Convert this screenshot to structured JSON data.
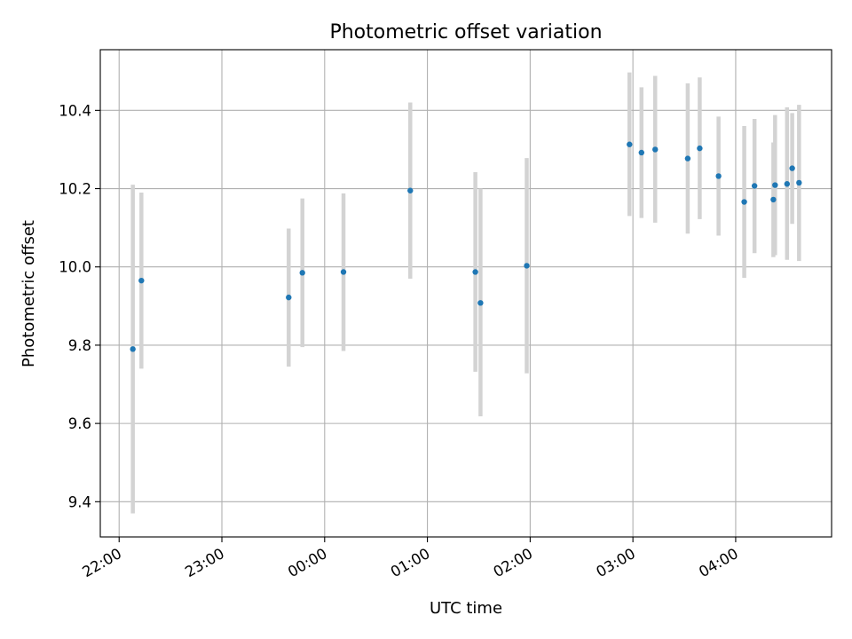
{
  "chart_data": {
    "type": "scatter",
    "title": "Photometric offset variation",
    "xlabel": "UTC time",
    "ylabel": "Photometric offset",
    "x_axis": "time",
    "xlim": [
      "21:49",
      "04:56"
    ],
    "ylim": [
      9.31,
      10.555
    ],
    "xticks": [
      "22:00",
      "23:00",
      "00:00",
      "01:00",
      "02:00",
      "03:00",
      "04:00"
    ],
    "yticks": [
      9.4,
      9.6,
      9.8,
      10.0,
      10.2,
      10.4
    ],
    "ytick_labels": [
      "9.4",
      "9.6",
      "9.8",
      "10.0",
      "10.2",
      "10.4"
    ],
    "grid": true,
    "legend": "none",
    "colors": {
      "point": "#1f77b4",
      "errorbar": "#d3d3d3",
      "grid": "#b0b0b0"
    },
    "points": [
      {
        "x": "22:08",
        "y": 9.79,
        "lo": 9.37,
        "hi": 10.21
      },
      {
        "x": "22:13",
        "y": 9.965,
        "lo": 9.74,
        "hi": 10.19
      },
      {
        "x": "23:39",
        "y": 9.922,
        "lo": 9.745,
        "hi": 10.098
      },
      {
        "x": "23:47",
        "y": 9.985,
        "lo": 9.795,
        "hi": 10.175
      },
      {
        "x": "00:11",
        "y": 9.987,
        "lo": 9.785,
        "hi": 10.188
      },
      {
        "x": "00:50",
        "y": 10.195,
        "lo": 9.97,
        "hi": 10.42
      },
      {
        "x": "01:28",
        "y": 9.987,
        "lo": 9.732,
        "hi": 10.242
      },
      {
        "x": "01:31",
        "y": 9.908,
        "lo": 9.618,
        "hi": 10.2
      },
      {
        "x": "01:58",
        "y": 10.003,
        "lo": 9.728,
        "hi": 10.278
      },
      {
        "x": "02:58",
        "y": 10.313,
        "lo": 10.13,
        "hi": 10.497
      },
      {
        "x": "03:05",
        "y": 10.292,
        "lo": 10.125,
        "hi": 10.459
      },
      {
        "x": "03:13",
        "y": 10.3,
        "lo": 10.113,
        "hi": 10.488
      },
      {
        "x": "03:32",
        "y": 10.277,
        "lo": 10.085,
        "hi": 10.469
      },
      {
        "x": "03:39",
        "y": 10.303,
        "lo": 10.122,
        "hi": 10.484
      },
      {
        "x": "03:50",
        "y": 10.232,
        "lo": 10.08,
        "hi": 10.384
      },
      {
        "x": "04:05",
        "y": 10.166,
        "lo": 9.972,
        "hi": 10.36
      },
      {
        "x": "04:11",
        "y": 10.207,
        "lo": 10.035,
        "hi": 10.378
      },
      {
        "x": "04:22",
        "y": 10.172,
        "lo": 10.025,
        "hi": 10.318
      },
      {
        "x": "04:23",
        "y": 10.209,
        "lo": 10.03,
        "hi": 10.388
      },
      {
        "x": "04:30",
        "y": 10.212,
        "lo": 10.018,
        "hi": 10.408
      },
      {
        "x": "04:33",
        "y": 10.252,
        "lo": 10.11,
        "hi": 10.393
      },
      {
        "x": "04:37",
        "y": 10.215,
        "lo": 10.015,
        "hi": 10.414
      }
    ]
  }
}
